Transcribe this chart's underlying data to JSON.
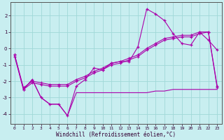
{
  "xlabel": "Windchill (Refroidissement éolien,°C)",
  "bg_color": "#c8eef0",
  "grid_color": "#a0d8d8",
  "line_color": "#aa00aa",
  "xlim": [
    -0.5,
    23.5
  ],
  "ylim": [
    -4.6,
    2.8
  ],
  "yticks": [
    -4,
    -3,
    -2,
    -1,
    0,
    1,
    2
  ],
  "xticks": [
    0,
    1,
    2,
    3,
    4,
    5,
    6,
    7,
    8,
    9,
    10,
    11,
    12,
    13,
    14,
    15,
    16,
    17,
    18,
    19,
    20,
    21,
    22,
    23
  ],
  "line1_x": [
    0,
    1,
    2,
    3,
    4,
    5,
    6,
    7,
    8,
    9,
    10,
    11,
    12,
    13,
    14,
    15,
    16,
    17,
    18,
    19,
    20,
    21,
    22,
    23
  ],
  "line1_y": [
    -0.4,
    -2.5,
    -1.9,
    -3.0,
    -3.4,
    -3.4,
    -4.1,
    -2.3,
    -1.9,
    -1.2,
    -1.3,
    -0.9,
    -0.8,
    -0.8,
    0.1,
    2.4,
    2.1,
    1.7,
    0.9,
    0.3,
    0.2,
    1.0,
    0.5,
    -0.1
  ],
  "line2_x": [
    0,
    1,
    2,
    3,
    4,
    5,
    6,
    7,
    8,
    9,
    10,
    11,
    12,
    13,
    14,
    15,
    16,
    17,
    18,
    19,
    20,
    21,
    22,
    23
  ],
  "line2_y": [
    -0.5,
    -2.5,
    -2.1,
    -2.2,
    -2.3,
    -2.3,
    -2.3,
    -2.0,
    -1.8,
    -1.5,
    -1.3,
    -1.0,
    -0.9,
    -0.7,
    -0.5,
    -0.1,
    0.2,
    0.5,
    0.6,
    0.7,
    0.7,
    0.9,
    1.0,
    -2.4
  ],
  "line3_x": [
    0,
    1,
    2,
    3,
    4,
    5,
    6,
    7,
    8,
    9,
    10,
    11,
    12,
    13,
    14,
    15,
    16,
    17,
    18,
    19,
    20,
    21,
    22,
    23
  ],
  "line3_y": [
    -0.4,
    -2.4,
    -2.0,
    -2.1,
    -2.2,
    -2.2,
    -2.2,
    -1.9,
    -1.7,
    -1.4,
    -1.2,
    -0.9,
    -0.8,
    -0.6,
    -0.4,
    0.0,
    0.3,
    0.6,
    0.7,
    0.8,
    0.8,
    1.0,
    1.0,
    -2.3
  ],
  "line4_x": [
    1,
    2,
    3,
    4,
    5,
    6,
    7,
    8,
    9,
    10,
    11,
    12,
    13,
    14,
    15,
    16,
    17,
    18,
    19,
    20,
    21,
    22,
    23
  ],
  "line4_y": [
    -2.5,
    -1.9,
    -3.0,
    -3.4,
    -3.4,
    -4.1,
    -2.7,
    -2.7,
    -2.7,
    -2.7,
    -2.7,
    -2.7,
    -2.7,
    -2.7,
    -2.7,
    -2.6,
    -2.6,
    -2.5,
    -2.5,
    -2.5,
    -2.5,
    -2.5,
    -2.5
  ]
}
